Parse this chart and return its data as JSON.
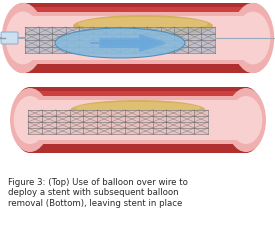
{
  "bg_color": "#ffffff",
  "figure_text": "Figure 3: (Top) Use of balloon over wire to\ndeploy a stent with subsequent balloon\nremoval (Bottom), leaving stent in place",
  "text_color": "#2a2a2a",
  "text_fontsize": 6.2,
  "artery_dark_red": "#b03030",
  "artery_mid_red": "#cc4040",
  "artery_light_red": "#e07070",
  "artery_inner_pink": "#f0b0b0",
  "artery_lumen": "#f8d0d0",
  "plaque_color": "#d4b060",
  "plaque_light": "#e8cc80",
  "stent_gray": "#707070",
  "stent_bg_top": "#b0b8c8",
  "stent_bg_bot": "#e8c0c0",
  "balloon_blue": "#4488bb",
  "balloon_fill": "#88bbdd",
  "balloon_light": "#aad4ee",
  "arrow_blue": "#5599cc",
  "arrow_light": "#88bbee",
  "catheter_blue": "#88aacc",
  "wire_gray": "#99aabb"
}
